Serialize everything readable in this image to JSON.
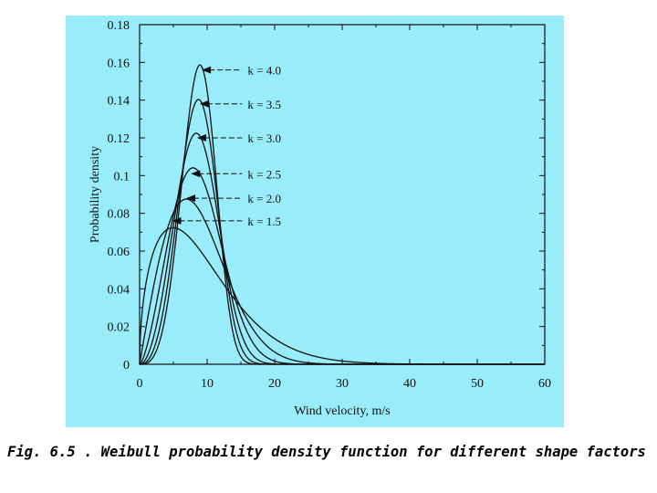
{
  "chart_data": {
    "type": "line",
    "title": "",
    "xlabel": "Wind velocity, m/s",
    "ylabel": "Probability density",
    "xlim": [
      0,
      60
    ],
    "ylim": [
      0,
      0.18
    ],
    "x_ticks": [
      "0",
      "10",
      "20",
      "30",
      "40",
      "50",
      "60"
    ],
    "y_ticks": [
      "0",
      "0.02",
      "0.04",
      "0.06",
      "0.08",
      "0.1",
      "0.12",
      "0.14",
      "0.16",
      "0.18"
    ],
    "grid": false,
    "series": [
      {
        "name": "k = 1.5",
        "k": 1.5,
        "scale_c": 10.3,
        "peak_x": 4.8,
        "peak_y": 0.076
      },
      {
        "name": "k = 2.0",
        "k": 2.0,
        "scale_c": 9.8,
        "peak_x": 6.9,
        "peak_y": 0.088
      },
      {
        "name": "k = 2.5",
        "k": 2.5,
        "scale_c": 9.7,
        "peak_x": 7.6,
        "peak_y": 0.101
      },
      {
        "name": "k = 3.0",
        "k": 3.0,
        "scale_c": 9.6,
        "peak_x": 8.5,
        "peak_y": 0.12
      },
      {
        "name": "k = 3.5",
        "k": 3.5,
        "scale_c": 9.6,
        "peak_x": 8.9,
        "peak_y": 0.138
      },
      {
        "name": "k = 4.0",
        "k": 4.0,
        "scale_c": 9.6,
        "peak_x": 9.2,
        "peak_y": 0.156
      }
    ],
    "annotations": [
      "k = 4.0",
      "k = 3.5",
      "k = 3.0",
      "k = 2.5",
      "k = 2.0",
      "k = 1.5"
    ]
  },
  "caption": "Fig. 6.5 . Weibull probability density function for different shape factors"
}
